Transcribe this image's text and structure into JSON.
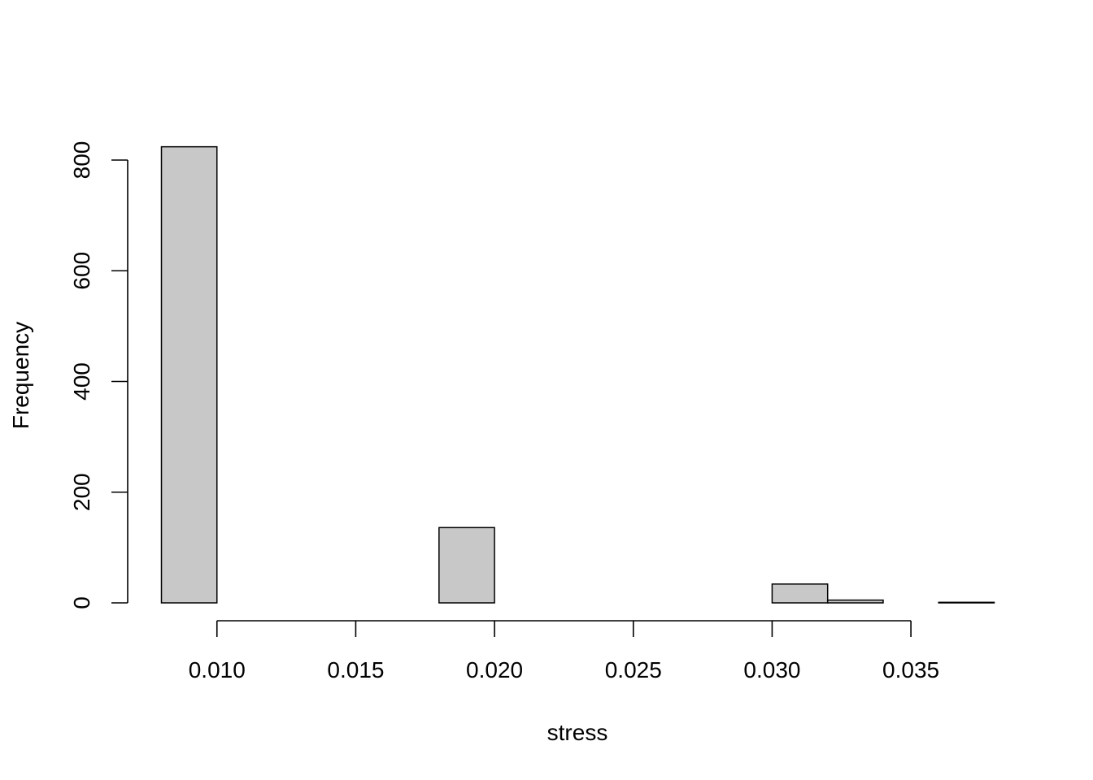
{
  "chart_data": {
    "type": "bar",
    "title": "",
    "xlabel": "stress",
    "ylabel": "Frequency",
    "bin_edges": [
      0.008,
      0.01,
      0.012,
      0.014,
      0.016,
      0.018,
      0.02,
      0.022,
      0.024,
      0.026,
      0.028,
      0.03,
      0.032,
      0.034,
      0.036,
      0.038
    ],
    "counts": [
      824,
      0,
      0,
      0,
      0,
      136,
      0,
      0,
      0,
      0,
      0,
      34,
      5,
      0,
      1
    ],
    "xlim": [
      0.008,
      0.038
    ],
    "ylim": [
      0,
      824
    ],
    "x_ticks": [
      0.01,
      0.015,
      0.02,
      0.025,
      0.03,
      0.035
    ],
    "x_tick_labels": [
      "0.010",
      "0.015",
      "0.020",
      "0.025",
      "0.030",
      "0.035"
    ],
    "y_ticks": [
      0,
      200,
      400,
      600,
      800
    ],
    "y_tick_labels": [
      "0",
      "200",
      "400",
      "600",
      "800"
    ],
    "bar_fill": "#c8c8c8",
    "bar_stroke": "#000000",
    "grid": false,
    "legend": "none"
  }
}
